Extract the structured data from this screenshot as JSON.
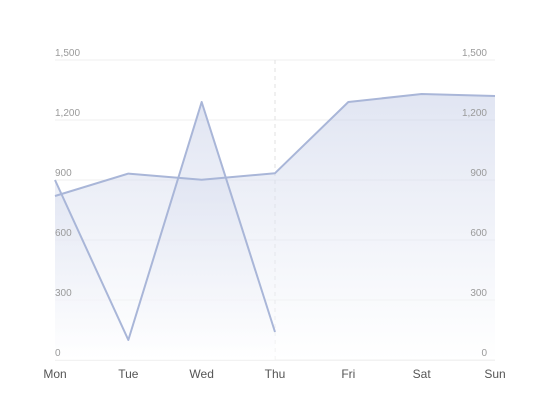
{
  "chart_data": {
    "type": "area",
    "categories": [
      "Mon",
      "Tue",
      "Wed",
      "Thu",
      "Fri",
      "Sat",
      "Sun"
    ],
    "series": [
      {
        "values": [
          820,
          932,
          901,
          934,
          1290,
          1330,
          1320
        ]
      },
      {
        "values": [
          900,
          100,
          1290,
          140,
          null,
          null,
          null
        ]
      }
    ],
    "ylim": [
      0,
      1500
    ],
    "yticks": [
      "0",
      "300",
      "600",
      "900",
      "1,200",
      "1,500"
    ],
    "yticks_right": [
      "0",
      "300",
      "600",
      "900",
      "1,200",
      "1,500"
    ],
    "grid": true,
    "colors": {
      "line": "#a9b6d8",
      "area_top": "#c8d0e8",
      "area_bottom": "#ffffff",
      "grid": "#efefef",
      "axis": "#e6e6e6",
      "marker": "#e0e0e0"
    },
    "marker_category": "Thu"
  }
}
